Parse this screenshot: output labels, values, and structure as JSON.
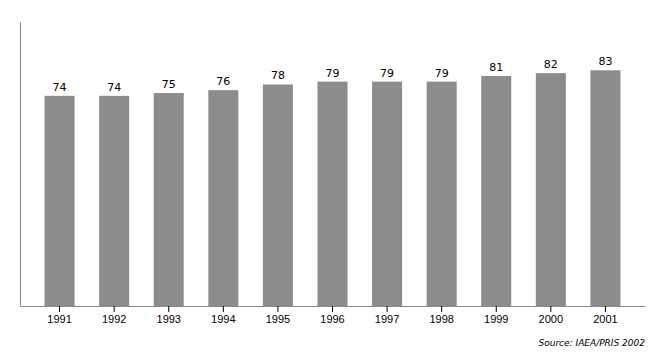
{
  "chart_data": {
    "type": "bar",
    "categories": [
      "1991",
      "1992",
      "1993",
      "1994",
      "1995",
      "1996",
      "1997",
      "1998",
      "1999",
      "2000",
      "2001"
    ],
    "values": [
      74,
      74,
      75,
      76,
      78,
      79,
      79,
      79,
      81,
      82,
      83
    ],
    "color": "#8c8c8c",
    "ylim": [
      0,
      100
    ],
    "data_labels": true,
    "tick_labels": "x",
    "grid": false,
    "annotations": [
      "Source: IAEA/PRIS 2002"
    ]
  }
}
